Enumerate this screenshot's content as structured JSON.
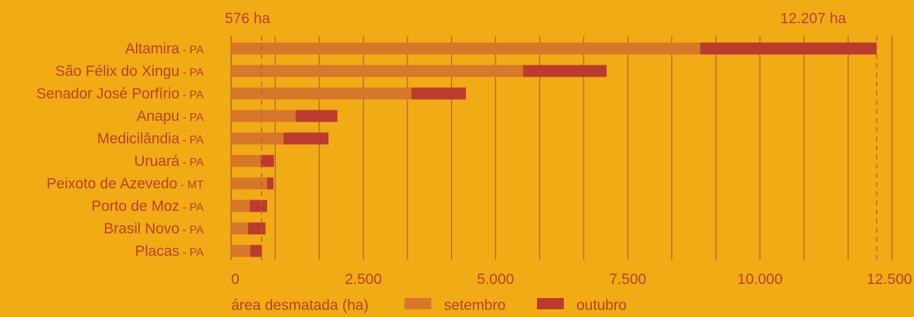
{
  "chart_data": {
    "type": "bar",
    "orientation": "horizontal",
    "stacked": true,
    "categories": [
      {
        "name": "Altamira",
        "uf": "PA"
      },
      {
        "name": "São Félix do Xingu",
        "uf": "PA"
      },
      {
        "name": "Senador José Porfírio",
        "uf": "PA"
      },
      {
        "name": "Anapu",
        "uf": "PA"
      },
      {
        "name": "Medicilândia",
        "uf": "PA"
      },
      {
        "name": "Uruará",
        "uf": "PA"
      },
      {
        "name": "Peixoto de Azevedo",
        "uf": "MT"
      },
      {
        "name": "Porto de Moz",
        "uf": "PA"
      },
      {
        "name": "Brasil Novo",
        "uf": "PA"
      },
      {
        "name": "Placas",
        "uf": "PA"
      }
    ],
    "series": [
      {
        "name": "setembro",
        "color": "#D6782A",
        "values": [
          8870,
          5520,
          3410,
          1220,
          990,
          560,
          680,
          350,
          320,
          360
        ]
      },
      {
        "name": "outubro",
        "color": "#BC3B2F",
        "values": [
          3337,
          1580,
          1030,
          790,
          850,
          250,
          120,
          330,
          330,
          220
        ]
      }
    ],
    "x_ticks": [
      0,
      2500,
      5000,
      7500,
      10000,
      12500
    ],
    "x_tick_labels": [
      "0",
      "2.500",
      "5.000",
      "7.500",
      "10.000",
      "12.500"
    ],
    "xlim": [
      0,
      12500
    ],
    "minor_grid_step": 833.33,
    "xlabel": "área desmatada (ha)",
    "separator": " - ",
    "reference_lines": [
      {
        "value": 576,
        "label": "576 ha"
      },
      {
        "value": 12207,
        "label": "12.207 ha"
      }
    ],
    "legend_position": "bottom",
    "grid": true,
    "colors": {
      "background": "#F1AB15",
      "text": "#B8412B",
      "grid": "#A9662C"
    }
  }
}
